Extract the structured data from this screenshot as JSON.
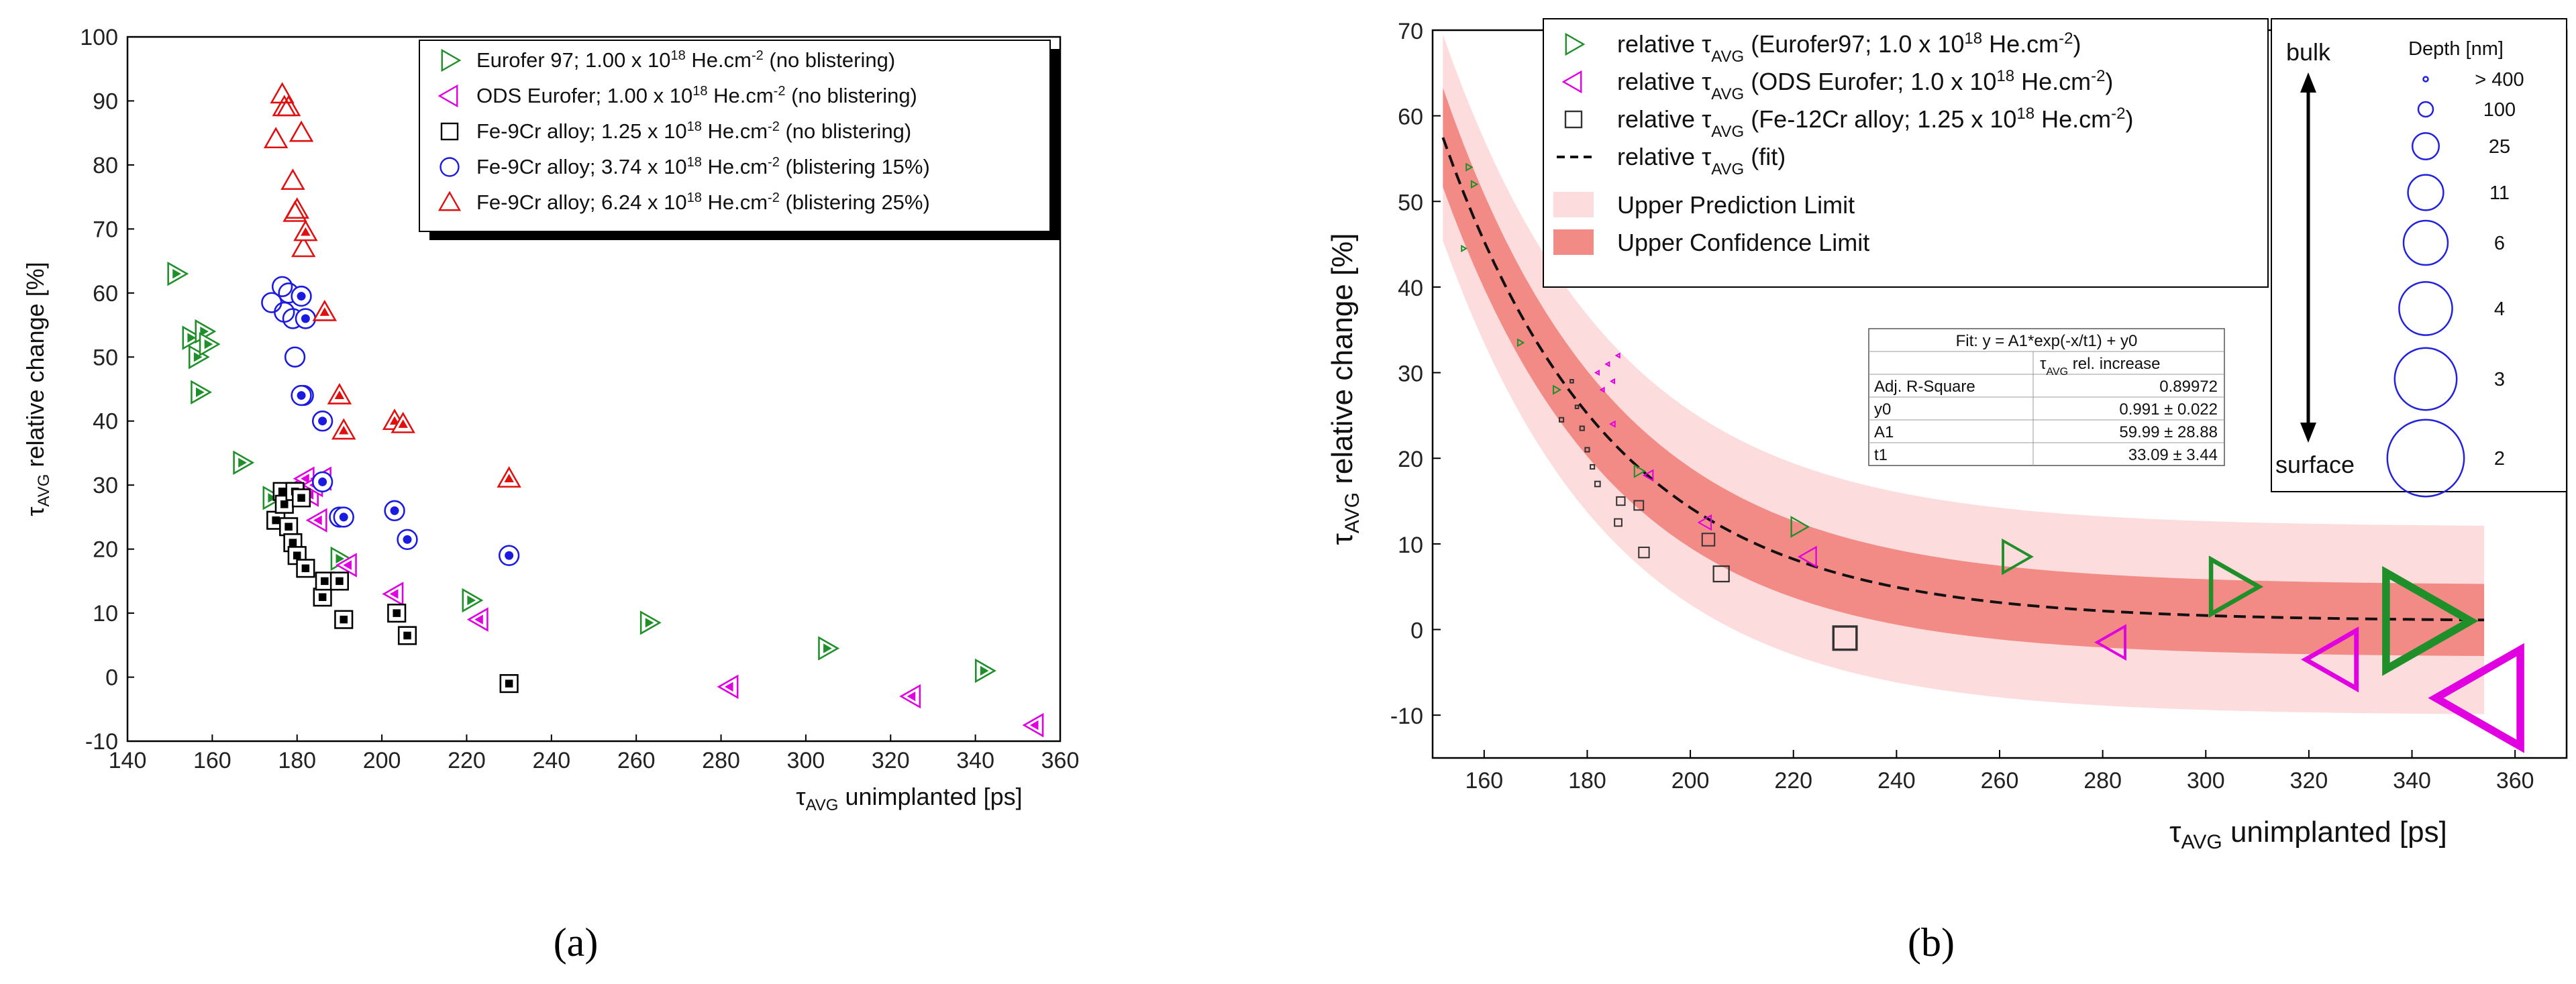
{
  "chart_data": [
    {
      "id": "a",
      "type": "scatter",
      "caption": "(a)",
      "xlabel": "unimplanted [ps]",
      "ylabel": "relative change [%]",
      "xlim": [
        140,
        360
      ],
      "ylim": [
        -10,
        100
      ],
      "xticks": [
        "140",
        "160",
        "180",
        "200",
        "220",
        "240",
        "260",
        "280",
        "300",
        "320",
        "340",
        "360"
      ],
      "yticks": [
        "-10",
        "0",
        "10",
        "20",
        "30",
        "40",
        "50",
        "60",
        "70",
        "80",
        "90",
        "100"
      ],
      "series": [
        {
          "name": "Eurofer 97;",
          "dose": "1.00 x 10",
          "exp": "18",
          "unit": " He.cm",
          "uexp": "-2",
          "note": " (no blistering)",
          "marker": "tri-right-open",
          "color": "#1f8f2a",
          "points": [
            [
              151.5,
              63
            ],
            [
              155,
              53
            ],
            [
              156.5,
              50
            ],
            [
              157,
              44.5
            ],
            [
              158,
              54
            ],
            [
              159,
              52
            ],
            [
              167,
              33.5
            ],
            [
              174,
              28
            ],
            [
              190,
              18.5
            ],
            [
              221,
              12
            ],
            [
              263,
              8.5
            ],
            [
              305,
              4.5
            ],
            [
              342,
              1
            ]
          ]
        },
        {
          "name": "ODS Eurofer;",
          "dose": "1.00 x 10",
          "exp": "18",
          "unit": " He.cm",
          "uexp": "-2",
          "note": " (no blistering)",
          "marker": "tri-left-open",
          "color": "#e000e0",
          "points": [
            [
              181,
              30
            ],
            [
              182,
              31
            ],
            [
              183,
              28.5
            ],
            [
              184,
              30
            ],
            [
              185,
              24.5
            ],
            [
              186,
              31
            ],
            [
              192,
              17.5
            ],
            [
              203,
              13
            ],
            [
              223,
              9
            ],
            [
              282,
              -1.5
            ],
            [
              325,
              -3
            ],
            [
              354,
              -7.5
            ]
          ]
        },
        {
          "name": "Fe-9Cr alloy;",
          "dose": "1.25 x 10",
          "exp": "18",
          "unit": " He.cm",
          "uexp": "-2",
          "note": " (no blistering)",
          "marker": "square-open",
          "color": "#000000",
          "points": [
            [
              175,
              24.5
            ],
            [
              176.5,
              29
            ],
            [
              177,
              27
            ],
            [
              178,
              23.5
            ],
            [
              179,
              21
            ],
            [
              179.5,
              29
            ],
            [
              180,
              19
            ],
            [
              181,
              28
            ],
            [
              182,
              17
            ],
            [
              186,
              12.5
            ],
            [
              186.5,
              15
            ],
            [
              190,
              15
            ],
            [
              191,
              9
            ],
            [
              203.5,
              10
            ],
            [
              206,
              6.5
            ],
            [
              230,
              -1
            ]
          ]
        },
        {
          "name": "Fe-9Cr alloy;",
          "dose": "3.74 x 10",
          "exp": "18",
          "unit": " He.cm",
          "uexp": "-2",
          "note": " (blistering 15%)",
          "marker": "circle-open",
          "color": "#1a1ae0",
          "points": [
            [
              174,
              58.5
            ],
            [
              176.5,
              61
            ],
            [
              177,
              57
            ],
            [
              178,
              60
            ],
            [
              179,
              56
            ],
            [
              179.5,
              50
            ],
            [
              181,
              59.5
            ],
            [
              181.5,
              44
            ],
            [
              182,
              56
            ],
            [
              186,
              40
            ],
            [
              190,
              25
            ],
            [
              191,
              25
            ],
            [
              203,
              26
            ],
            [
              206,
              21.5
            ],
            [
              230,
              19
            ],
            [
              186,
              30.5
            ],
            [
              181,
              44
            ]
          ]
        },
        {
          "name": "Fe-9Cr alloy;",
          "dose": "6.24 x 10",
          "exp": "18",
          "unit": " He.cm",
          "uexp": "-2",
          "note": " (blistering 25%)",
          "marker": "tri-up-open",
          "color": "#e01010",
          "points": [
            [
              175,
              84
            ],
            [
              176.5,
              91
            ],
            [
              177,
              89
            ],
            [
              178,
              89
            ],
            [
              179,
              77.5
            ],
            [
              179.5,
              72.5
            ],
            [
              180,
              73
            ],
            [
              181,
              85
            ],
            [
              181.5,
              67
            ],
            [
              182,
              69.5
            ],
            [
              186.5,
              57
            ],
            [
              190,
              44
            ],
            [
              191,
              38.5
            ],
            [
              203,
              40
            ],
            [
              205,
              39.5
            ],
            [
              230,
              31
            ]
          ]
        }
      ]
    },
    {
      "id": "b",
      "type": "scatter",
      "caption": "(b)",
      "xlabel": "unimplanted [ps]",
      "ylabel": "relative change [%]",
      "xlim": [
        150,
        370
      ],
      "ylim": [
        -15,
        70
      ],
      "xticks": [
        "160",
        "180",
        "200",
        "220",
        "240",
        "260",
        "280",
        "300",
        "320",
        "340",
        "360"
      ],
      "yticks": [
        "-10",
        "0",
        "10",
        "20",
        "30",
        "40",
        "50",
        "60",
        "70"
      ],
      "fit": {
        "y0": 0.991,
        "A1": 59.99,
        "t1": 33.09,
        "x0": 152,
        "x1": 355,
        "pred_band": 11,
        "conf_band": 4.2
      },
      "legend": [
        {
          "prefix": "relative ",
          "tau": "τ",
          "sub": "AVG",
          "text": " (Eurofer97; 1.0 x 10",
          "exp": "18",
          "unit": " He.cm",
          "uexp": "-2",
          "tail": ")"
        },
        {
          "prefix": "relative ",
          "tau": "τ",
          "sub": "AVG",
          "text": " (ODS Eurofer; 1.0 x 10",
          "exp": "18",
          "unit": " He.cm",
          "uexp": "-2",
          "tail": ")"
        },
        {
          "prefix": "relative ",
          "tau": "τ",
          "sub": "AVG",
          "text": " (Fe-12Cr alloy; 1.25 x 10",
          "exp": "18",
          "unit": " He.cm",
          "uexp": "-2",
          "tail": ")"
        },
        {
          "prefix": "relative ",
          "tau": "τ",
          "sub": "AVG",
          "text": " (fit)",
          "exp": "",
          "unit": "",
          "uexp": "",
          "tail": ""
        }
      ],
      "band_labels": [
        "Upper Prediction Limit",
        "Upper Confidence Limit"
      ],
      "fit_table": {
        "title": "Fit: y = A1*exp(-x/t1) + y0",
        "col_header_tau": "τ",
        "col_header_sub": "AVG",
        "col_header_rest": " rel. increase",
        "rows": [
          [
            "Adj. R-Square",
            "0.89972"
          ],
          [
            "y0",
            "0.991 ± 0.022"
          ],
          [
            "A1",
            "59.99 ± 28.88"
          ],
          [
            "t1",
            "33.09 ± 3.44"
          ]
        ]
      },
      "depth_legend": {
        "title": "Depth [nm]",
        "top_label": "bulk",
        "bottom_label": "surface",
        "items": [
          {
            "label": "> 400",
            "scale": 0.08
          },
          {
            "label": "100",
            "scale": 0.25
          },
          {
            "label": "25",
            "scale": 0.45
          },
          {
            "label": "11",
            "scale": 0.6
          },
          {
            "label": "6",
            "scale": 0.75
          },
          {
            "label": "4",
            "scale": 0.9
          },
          {
            "label": "3",
            "scale": 1.05
          },
          {
            "label": "2",
            "scale": 1.3
          }
        ]
      },
      "series": [
        {
          "name": "Eurofer97",
          "marker": "tri-right-open",
          "color": "#1f8f2a",
          "points": [
            [
              157,
              54,
              0.1
            ],
            [
              158,
              52,
              0.1
            ],
            [
              156,
              44.5,
              0.08
            ],
            [
              167,
              33.5,
              0.1
            ],
            [
              174,
              28,
              0.12
            ],
            [
              190,
              18.5,
              0.18
            ],
            [
              221,
              12,
              0.3
            ],
            [
              263,
              8.5,
              0.5
            ],
            [
              305,
              5,
              0.85
            ],
            [
              342,
              1,
              1.5
            ]
          ]
        },
        {
          "name": "ODS Eurofer",
          "marker": "tri-left-open",
          "color": "#e000e0",
          "points": [
            [
              182,
              30,
              0.06
            ],
            [
              183,
              28,
              0.06
            ],
            [
              184,
              31,
              0.06
            ],
            [
              185,
              29,
              0.06
            ],
            [
              186,
              32,
              0.06
            ],
            [
              185,
              24,
              0.08
            ],
            [
              192,
              18,
              0.16
            ],
            [
              203,
              12.5,
              0.22
            ],
            [
              223,
              8.5,
              0.3
            ],
            [
              282,
              -1.5,
              0.5
            ],
            [
              325,
              -3.5,
              0.9
            ],
            [
              354,
              -8,
              1.5
            ]
          ]
        },
        {
          "name": "Fe-12Cr alloy",
          "marker": "square-open",
          "color": "#333333",
          "points": [
            [
              175,
              24.5,
              0.08
            ],
            [
              177,
              29,
              0.06
            ],
            [
              178,
              26,
              0.06
            ],
            [
              179,
              23.5,
              0.08
            ],
            [
              180,
              21,
              0.08
            ],
            [
              181,
              19,
              0.08
            ],
            [
              182,
              17,
              0.1
            ],
            [
              186,
              12.5,
              0.14
            ],
            [
              186.5,
              15,
              0.16
            ],
            [
              190,
              14.5,
              0.18
            ],
            [
              191,
              9,
              0.2
            ],
            [
              203.5,
              10.5,
              0.24
            ],
            [
              206,
              6.5,
              0.3
            ],
            [
              230,
              -1,
              0.45
            ]
          ]
        }
      ]
    }
  ]
}
